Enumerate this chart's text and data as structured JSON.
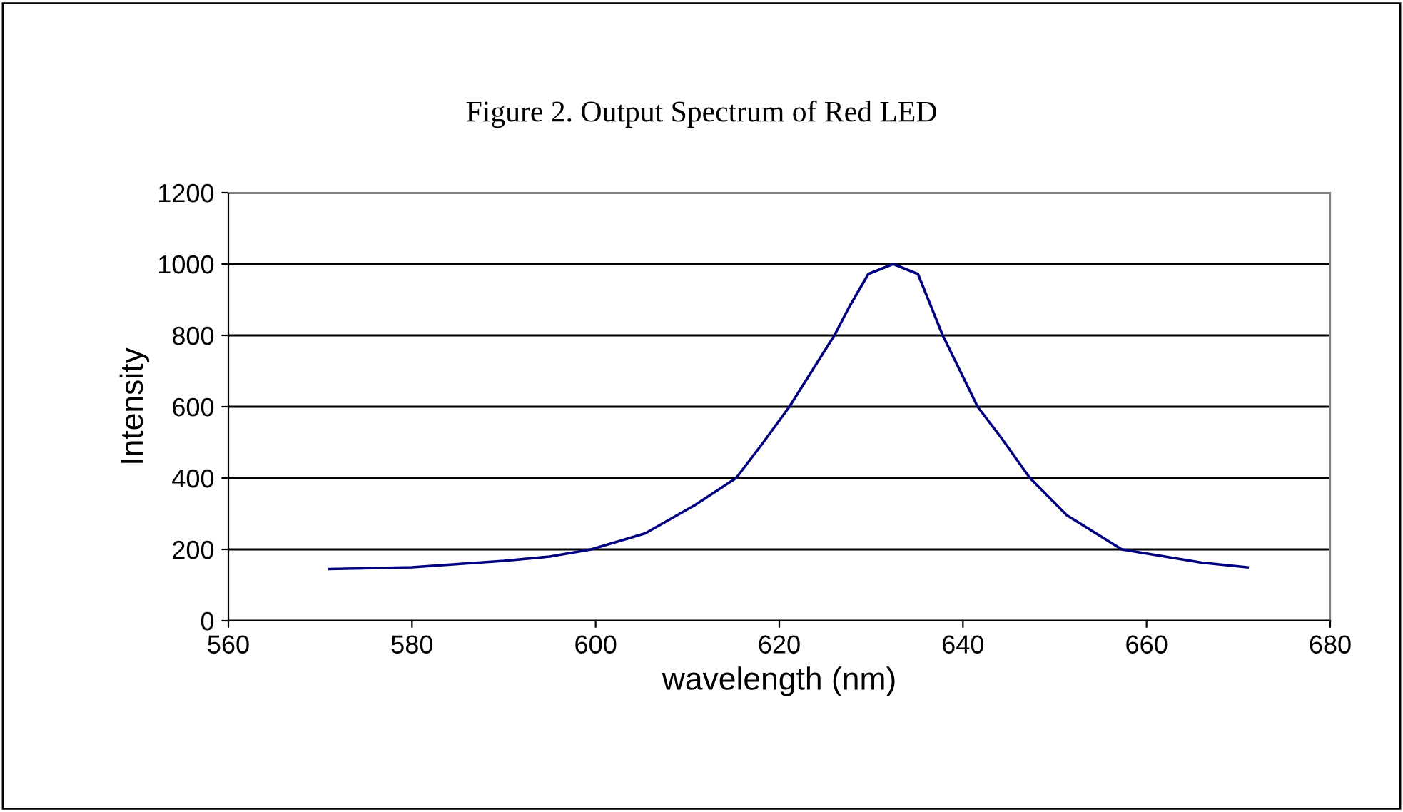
{
  "chart_data": {
    "type": "line",
    "title": "Figure 2. Output Spectrum of Red LED",
    "xlabel": "wavelength (nm)",
    "ylabel": "Intensity",
    "series": [
      {
        "color": "#000080",
        "x": [
          571,
          580,
          590,
          595,
          599.5,
          605.4,
          610.8,
          615.3,
          618.2,
          621.1,
          626,
          627.6,
          629.7,
          632.4,
          635.1,
          637.8,
          641.6,
          644.2,
          647.3,
          651.3,
          657.3,
          662,
          666,
          671
        ],
        "values": [
          145,
          150,
          168,
          180,
          200,
          245,
          324,
          400,
          498,
          600,
          800,
          879,
          972,
          1000,
          972,
          800,
          600,
          512,
          400,
          296,
          200,
          180,
          163,
          150
        ]
      }
    ],
    "xlim": [
      560,
      680
    ],
    "xticks": [
      560,
      580,
      600,
      620,
      640,
      660,
      680
    ],
    "ylim": [
      0,
      1200
    ],
    "yticks": [
      0,
      200,
      400,
      600,
      800,
      1000,
      1200
    ],
    "grid": "y",
    "legend": false,
    "marker": "none",
    "line_style": "solid"
  }
}
